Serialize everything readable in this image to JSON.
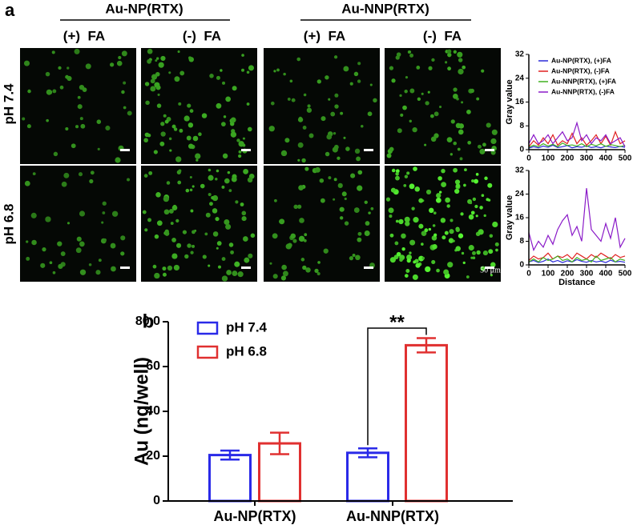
{
  "panel_a": {
    "label": "a",
    "groups": [
      "Au-NP(RTX)",
      "Au-NNP(RTX)"
    ],
    "columns": [
      "(+)  FA",
      "(-)  FA",
      "(+)  FA",
      "(-)  FA"
    ],
    "rows": [
      "pH 7.4",
      "pH 6.8"
    ],
    "scale_bar": "50 μm"
  },
  "chart_data": [
    {
      "type": "line",
      "ylabel": "Gray value",
      "x": [
        0,
        25,
        50,
        75,
        100,
        125,
        150,
        175,
        200,
        225,
        250,
        275,
        300,
        325,
        350,
        375,
        400,
        425,
        450,
        475,
        500
      ],
      "xlim": [
        0,
        500
      ],
      "xticks": [
        0,
        100,
        200,
        300,
        400,
        500
      ],
      "ylim": [
        0,
        32
      ],
      "yticks": [
        0,
        8,
        16,
        24,
        32
      ],
      "legend": "upper-right",
      "series": [
        {
          "name": "Au-NP(RTX), (+)FA",
          "color": "#2a2ad8",
          "values": [
            0.5,
            1,
            0.6,
            1.2,
            0.8,
            1.5,
            0.7,
            1,
            1.4,
            0.6,
            1,
            0.8,
            1.3,
            0.7,
            1,
            0.6,
            1.2,
            0.9,
            0.7,
            1.1,
            0.8
          ]
        },
        {
          "name": "Au-NP(RTX), (-)FA",
          "color": "#e02020",
          "values": [
            1,
            3,
            1.5,
            4,
            2,
            5,
            1.5,
            3,
            2,
            5.5,
            2,
            4,
            1.5,
            3,
            5,
            2,
            4.5,
            1.5,
            6,
            2,
            3
          ]
        },
        {
          "name": "Au-NNP(RTX), (+)FA",
          "color": "#40b020",
          "values": [
            0.8,
            1.5,
            1,
            2,
            1.2,
            1.8,
            1,
            2.2,
            1.4,
            1.6,
            1.2,
            2,
            1,
            1.8,
            1.3,
            2,
            1.1,
            1.7,
            1.4,
            1,
            1.5
          ]
        },
        {
          "name": "Au-NNP(RTX), (-)FA",
          "color": "#8a1ac8",
          "values": [
            2,
            5,
            2,
            3,
            5,
            2,
            4,
            6,
            3,
            4,
            9,
            3,
            5,
            2,
            4,
            3,
            5,
            2,
            3,
            4,
            1
          ]
        }
      ]
    },
    {
      "type": "line",
      "ylabel": "Gray value",
      "xlabel": "Distance",
      "x": [
        0,
        25,
        50,
        75,
        100,
        125,
        150,
        175,
        200,
        225,
        250,
        275,
        300,
        325,
        350,
        375,
        400,
        425,
        450,
        475,
        500
      ],
      "xlim": [
        0,
        500
      ],
      "xticks": [
        0,
        100,
        200,
        300,
        400,
        500
      ],
      "ylim": [
        0,
        32
      ],
      "yticks": [
        0,
        8,
        16,
        24,
        32
      ],
      "series": [
        {
          "name": "Au-NP(RTX), (+)FA",
          "color": "#2a2ad8",
          "values": [
            1,
            1.5,
            0.8,
            1.2,
            2,
            1,
            1.5,
            0.8,
            1.4,
            1,
            1.8,
            1.2,
            0.9,
            1.5,
            1,
            1.3,
            0.8,
            1.6,
            1,
            1.2,
            0.9
          ]
        },
        {
          "name": "Au-NP(RTX), (-)FA",
          "color": "#e02020",
          "values": [
            1.5,
            3,
            2,
            2.5,
            4,
            2,
            3,
            2.5,
            3.5,
            2,
            4,
            3,
            2,
            3.5,
            2.5,
            4,
            3,
            2,
            3.5,
            2.5,
            3
          ]
        },
        {
          "name": "Au-NNP(RTX), (+)FA",
          "color": "#40b020",
          "values": [
            1,
            2,
            1,
            2.5,
            1.5,
            2,
            3,
            1.5,
            2,
            1,
            2.5,
            1.5,
            2,
            1,
            3,
            1.5,
            2,
            2.5,
            1,
            2,
            1.5
          ]
        },
        {
          "name": "Au-NNP(RTX), (-)FA",
          "color": "#8a1ac8",
          "values": [
            11,
            5,
            8,
            6,
            10,
            7,
            12,
            15,
            17,
            10,
            13,
            8,
            26,
            12,
            10,
            8,
            14,
            9,
            16,
            6,
            9
          ]
        }
      ]
    },
    {
      "type": "bar",
      "panel_label": "b",
      "ylabel": "Au (ng/well)",
      "annotation": "**",
      "categories": [
        "Au-NP(RTX)",
        "Au-NNP(RTX)"
      ],
      "ylim": [
        0,
        80
      ],
      "yticks": [
        0,
        20,
        40,
        60,
        {
          "value": 80,
          "label": "80.0"
        }
      ],
      "legend": "upper-left",
      "series": [
        {
          "name": "pH 7.4",
          "color": "#2a2ae8",
          "values": [
            20.5,
            21.5
          ],
          "errors": [
            2,
            2
          ]
        },
        {
          "name": "pH 6.8",
          "color": "#e03030",
          "values": [
            25.7,
            69.5
          ],
          "errors": [
            4.8,
            3.2
          ]
        }
      ]
    }
  ]
}
